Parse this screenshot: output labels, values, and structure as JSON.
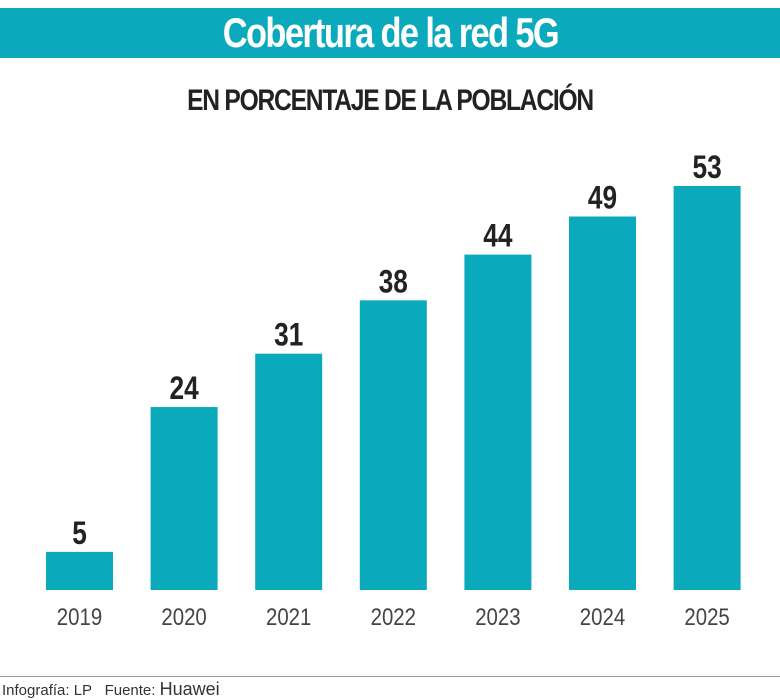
{
  "chart_data": {
    "type": "bar",
    "title": "Cobertura de la red 5G",
    "subtitle": "EN PORCENTAJE DE LA POBLACIÓN",
    "categories": [
      "2019",
      "2020",
      "2021",
      "2022",
      "2023",
      "2024",
      "2025"
    ],
    "values": [
      5,
      24,
      31,
      38,
      44,
      49,
      53
    ],
    "data_labels": [
      "5",
      "24",
      "31",
      "38",
      "44",
      "49",
      "53"
    ],
    "bar_color": "#0aa9bc",
    "ylim": [
      0,
      53
    ],
    "grid": false,
    "legend": "none"
  },
  "footer": {
    "credit": "Infografía: LP",
    "source_label": "Fuente:",
    "source": "Huawei"
  }
}
